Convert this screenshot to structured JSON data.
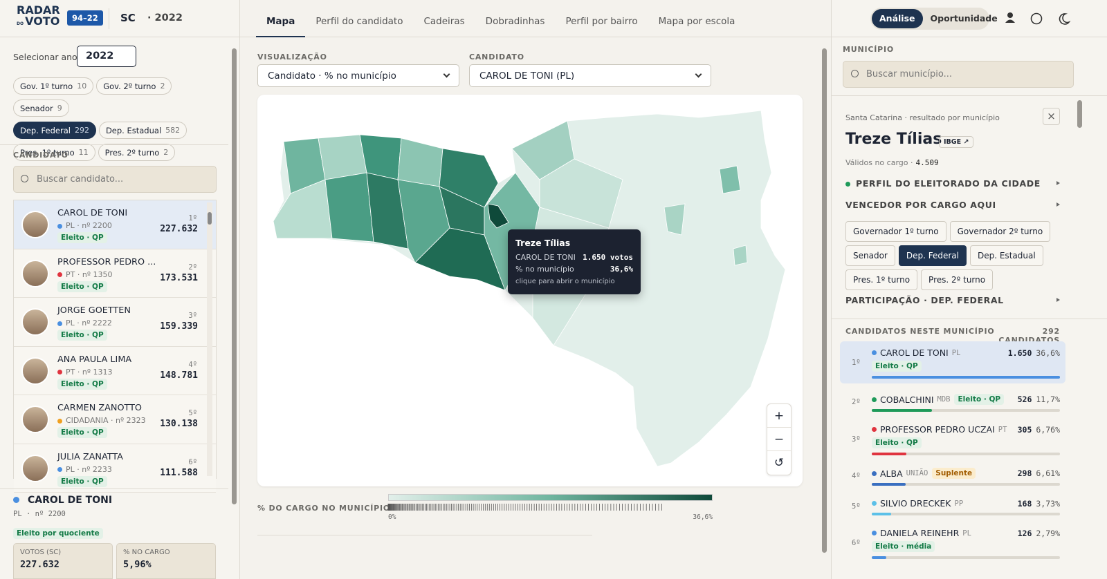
{
  "header": {
    "logo": [
      "RADAR",
      "DO",
      "VOTO"
    ],
    "badge": "94–22",
    "state": "SC",
    "year": "· 2022",
    "tabs": [
      "Mapa",
      "Perfil do candidato",
      "Cadeiras",
      "Dobradinhas",
      "Perfil por bairro",
      "Mapa por escola"
    ],
    "active_tab": 0,
    "modes": [
      "Análise",
      "Oportunidade"
    ],
    "active_mode": 0
  },
  "sidebar": {
    "year_label": "Selecionar ano",
    "year": "2022",
    "races": [
      {
        "name": "Gov. 1º turno",
        "count": "10"
      },
      {
        "name": "Gov. 2º turno",
        "count": "2"
      },
      {
        "name": "Senador",
        "count": "9"
      },
      {
        "name": "Dep. Federal",
        "count": "292"
      },
      {
        "name": "Dep. Estadual",
        "count": "582"
      },
      {
        "name": "Pres. 1º turno",
        "count": "11"
      },
      {
        "name": "Pres. 2º turno",
        "count": "2"
      }
    ],
    "active_race": 3,
    "candidate_label": "CANDIDATO",
    "search_placeholder": "Buscar candidato...",
    "candidates": [
      {
        "name": "CAROL DE TONI",
        "party": "PL · nº 2200",
        "party_color": "#4a8fe0",
        "status": "Eleito · QP",
        "rank": "1º",
        "votes": "227.632"
      },
      {
        "name": "PROFESSOR PEDRO ...",
        "party": "PT · nº 1350",
        "party_color": "#e0343f",
        "status": "Eleito · QP",
        "rank": "2º",
        "votes": "173.531"
      },
      {
        "name": "JORGE GOETTEN",
        "party": "PL · nº 2222",
        "party_color": "#4a8fe0",
        "status": "Eleito · QP",
        "rank": "3º",
        "votes": "159.339"
      },
      {
        "name": "ANA PAULA LIMA",
        "party": "PT · nº 1313",
        "party_color": "#e0343f",
        "status": "Eleito · QP",
        "rank": "4º",
        "votes": "148.781"
      },
      {
        "name": "CARMEN ZANOTTO",
        "party": "CIDADANIA · nº 2323",
        "party_color": "#f0a020",
        "status": "Eleito · QP",
        "rank": "5º",
        "votes": "130.138"
      },
      {
        "name": "JULIA ZANATTA",
        "party": "PL · nº 2233",
        "party_color": "#4a8fe0",
        "status": "Eleito · QP",
        "rank": "6º",
        "votes": "111.588"
      }
    ],
    "selected": {
      "name": "CAROL DE TONI",
      "sub": "PL · nº 2200",
      "status": "Eleito por quociente",
      "stats": [
        {
          "label": "VOTOS (SC)",
          "value": "227.632"
        },
        {
          "label": "% NO CARGO",
          "value": "5,96%"
        }
      ]
    }
  },
  "center": {
    "viz_label": "VISUALIZAÇÃO",
    "viz_value": "Candidato · % no município",
    "cand_label": "CANDIDATO",
    "cand_value": "CAROL DE TONI (PL)",
    "tooltip": {
      "title": "Treze Tílias",
      "rows": [
        [
          "CAROL DE TONI",
          "1.650 votos"
        ],
        [
          "% no município",
          "36,6%"
        ]
      ],
      "hint": "clique para abrir o município"
    },
    "controls": [
      "+",
      "−",
      "↺"
    ],
    "legend": {
      "title": "% DO CARGO NO MUNICÍPIO",
      "min": "0%",
      "max": "36,6%"
    }
  },
  "panel": {
    "label": "MUNICÍPIO",
    "search_placeholder": "Buscar município...",
    "context": "Santa Catarina · resultado por município",
    "close": "×",
    "name": "Treze Tílias",
    "ibge": "IBGE ↗",
    "valid_label": "Válidos no cargo ·",
    "valid": "4.509",
    "profile": "PERFIL DO ELEITORADO DA CIDADE",
    "winner": "VENCEDOR POR CARGO AQUI",
    "race_buttons": [
      "Governador 1º turno",
      "Governador 2º turno",
      "Senador",
      "Dep. Federal",
      "Dep. Estadual",
      "Pres. 1º turno",
      "Pres. 2º turno"
    ],
    "active_race": 3,
    "participation": "PARTICIPAÇÃO · DEP. FEDERAL",
    "list_label": "CANDIDATOS NESTE MUNICÍPIO",
    "list_count": "292 CANDIDATOS",
    "results": [
      {
        "rank": "1º",
        "name": "CAROL DE TONI",
        "party": "PL",
        "color": "#4a8fe0",
        "status": "Eleito · QP",
        "votes": "1.650",
        "share": 36.6,
        "pct": "36,6%"
      },
      {
        "rank": "2º",
        "name": "COBALCHINI",
        "party": "MDB",
        "color": "#1f9a5a",
        "status": "Eleito · QP",
        "votes": "526",
        "share": 11.7,
        "pct": "11,7%"
      },
      {
        "rank": "3º",
        "name": "PROFESSOR PEDRO UCZAI",
        "party": "PT",
        "color": "#e0343f",
        "status": "Eleito · QP",
        "votes": "305",
        "share": 6.76,
        "pct": "6,76%"
      },
      {
        "rank": "4º",
        "name": "ALBA",
        "party": "UNIÃO",
        "color": "#3a6fc0",
        "status": "Suplente",
        "votes": "298",
        "share": 6.61,
        "pct": "6,61%"
      },
      {
        "rank": "5º",
        "name": "SILVIO DRECKEK",
        "party": "PP",
        "color": "#5cc0e8",
        "status": null,
        "votes": "168",
        "share": 3.73,
        "pct": "3,73%"
      },
      {
        "rank": "6º",
        "name": "DANIELA REINEHR",
        "party": "PL",
        "color": "#4a8fe0",
        "status": "Eleito · média",
        "votes": "126",
        "share": 2.79,
        "pct": "2,79%"
      }
    ]
  }
}
